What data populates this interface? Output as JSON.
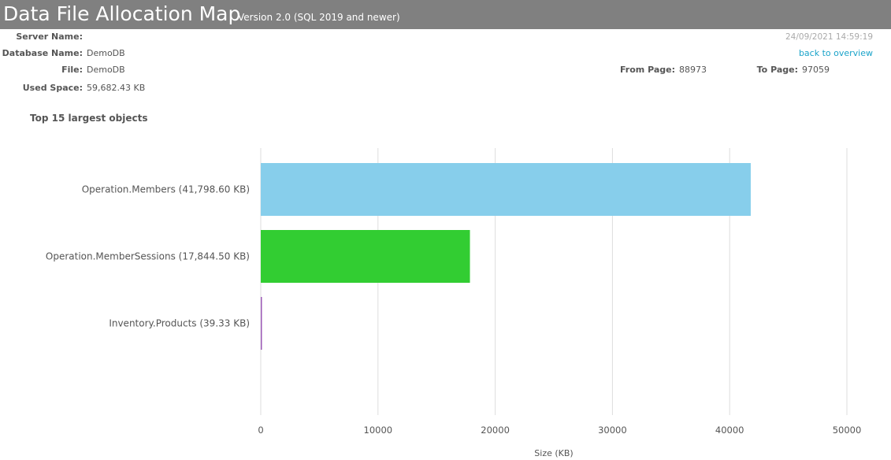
{
  "header": {
    "title": "Data File Allocation Map",
    "version": "Version 2.0 (SQL 2019 and newer)"
  },
  "info": {
    "server_label": "Server Name:",
    "server_value": "",
    "database_label": "Database Name:",
    "database_value": "DemoDB",
    "file_label": "File:",
    "file_value": "DemoDB",
    "used_space_label": "Used Space:",
    "used_space_value": "59,682.43 KB",
    "from_page_label": "From Page:",
    "from_page_value": "88973",
    "to_page_label": "To Page:",
    "to_page_value": "97059",
    "timestamp": "24/09/2021 14:59:19",
    "back_link": "back to overview"
  },
  "section": {
    "heading": "Top 15 largest objects"
  },
  "chart_data": {
    "type": "bar",
    "orientation": "horizontal",
    "title": "",
    "xlabel": "Size (KB)",
    "ylabel": "",
    "xlim": [
      0,
      50000
    ],
    "xticks": [
      0,
      10000,
      20000,
      30000,
      40000,
      50000
    ],
    "grid": true,
    "categories": [
      "Operation.Members (41,798.60 KB)",
      "Operation.MemberSessions (17,844.50 KB)",
      "Inventory.Products (39.33 KB)"
    ],
    "values": [
      41798.6,
      17844.5,
      39.33
    ],
    "colors": [
      "#87ceeb",
      "#32cd32",
      "#9b59b6"
    ]
  }
}
